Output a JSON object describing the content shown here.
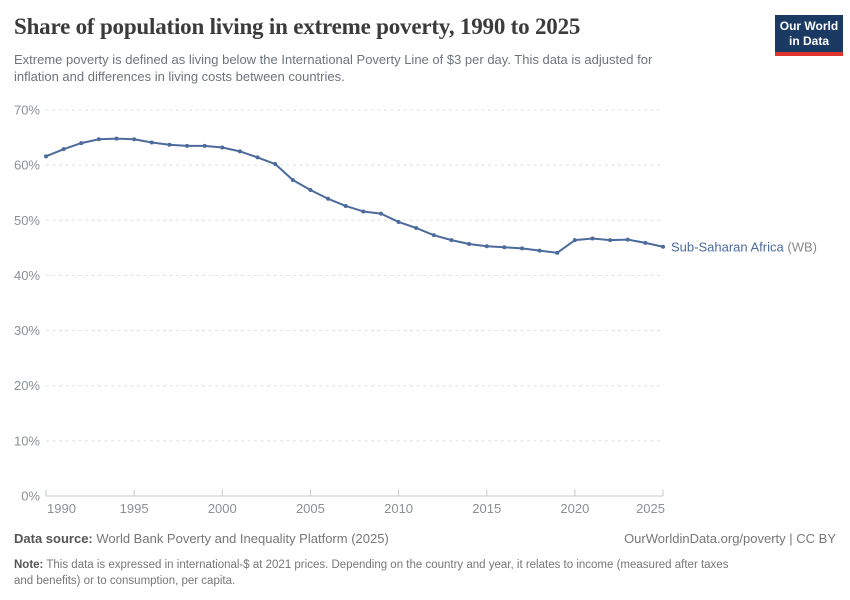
{
  "header": {
    "title": "Share of population living in extreme poverty, 1990 to 2025",
    "subtitle_line1": "Extreme poverty is defined as living below the International Poverty Line of $3 per day. This data is adjusted for",
    "subtitle_line2": "inflation and differences in living costs between countries.",
    "logo": {
      "line1": "Our World",
      "line2": "in Data"
    }
  },
  "chart_data": {
    "type": "line",
    "title": "Share of population living in extreme poverty, 1990 to 2025",
    "xlabel": "",
    "ylabel": "",
    "xlim": [
      1990,
      2025
    ],
    "ylim": [
      0,
      70
    ],
    "grid": "horizontal-dashed",
    "legend_position": "end-of-line-label",
    "x": [
      1990,
      1991,
      1992,
      1993,
      1994,
      1995,
      1996,
      1997,
      1998,
      1999,
      2000,
      2001,
      2002,
      2003,
      2004,
      2005,
      2006,
      2007,
      2008,
      2009,
      2010,
      2011,
      2012,
      2013,
      2014,
      2015,
      2016,
      2017,
      2018,
      2019,
      2020,
      2021,
      2022,
      2023,
      2024,
      2025
    ],
    "series": [
      {
        "name": "Sub-Saharan Africa (WB)",
        "color": "#4C6A9C",
        "values": [
          61.6,
          62.9,
          64.0,
          64.7,
          64.8,
          64.7,
          64.1,
          63.7,
          63.5,
          63.5,
          63.2,
          62.5,
          61.4,
          60.2,
          57.3,
          55.5,
          53.9,
          52.6,
          51.6,
          51.2,
          49.7,
          48.6,
          47.3,
          46.4,
          45.7,
          45.3,
          45.1,
          44.9,
          44.5,
          44.1,
          46.4,
          46.7,
          46.4,
          46.5,
          45.9,
          45.2
        ]
      }
    ],
    "x_ticks": [
      1990,
      1995,
      2000,
      2005,
      2010,
      2015,
      2020,
      2025
    ],
    "y_ticks": [
      {
        "v": 0,
        "label": "0%"
      },
      {
        "v": 10,
        "label": "10%"
      },
      {
        "v": 20,
        "label": "20%"
      },
      {
        "v": 30,
        "label": "30%"
      },
      {
        "v": 40,
        "label": "40%"
      },
      {
        "v": 50,
        "label": "50%"
      },
      {
        "v": 60,
        "label": "60%"
      },
      {
        "v": 70,
        "label": "70%"
      }
    ]
  },
  "series_label": {
    "name": "Sub-Saharan Africa",
    "qualifier": "(WB)"
  },
  "footer": {
    "source_label": "Data source:",
    "source_value": " World Bank Poverty and Inequality Platform (2025)",
    "link": "OurWorldinData.org/poverty | CC BY",
    "note_label": "Note:",
    "note_line1": " This data is expressed in international-$ at 2021 prices. Depending on the country and year, it relates to income (measured after taxes",
    "note_line2": "and benefits) or to consumption, per capita."
  },
  "colors": {
    "line": "#4C6A9C",
    "qualifier_text": "#8a8a8a",
    "grid": "#dde1e4",
    "axis": "#c4c9cc",
    "tick_text": "#8a9096",
    "logo_bg": "#1A3A63",
    "logo_red": "#DF342E"
  }
}
